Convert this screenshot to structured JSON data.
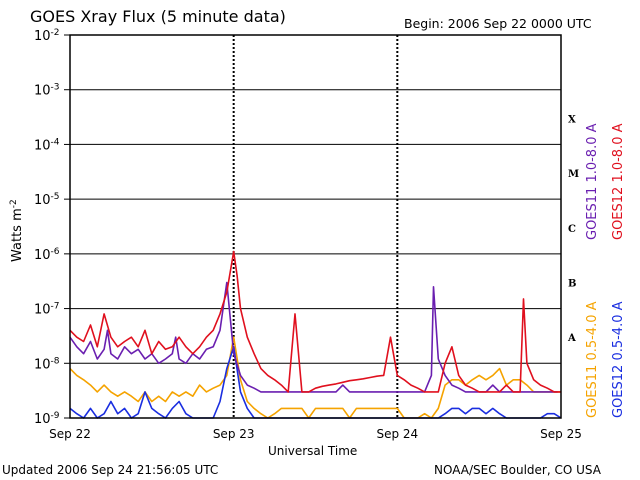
{
  "header": {
    "title": "GOES Xray Flux (5 minute data)",
    "begin": "Begin:  2006 Sep 22 0000 UTC"
  },
  "footer": {
    "updated": "Updated 2006 Sep 24 21:56:05 UTC",
    "credit": "NOAA/SEC Boulder, CO USA"
  },
  "colors": {
    "goes11_long": "#6a1fb0",
    "goes12_long": "#e0101e",
    "goes11_short": "#f5a300",
    "goes12_short": "#1a2ee0",
    "grid": "#000000"
  },
  "chart_data": {
    "type": "line",
    "yscale": "log",
    "ylim": [
      1e-09,
      0.01
    ],
    "ylabel_main": "Watts m",
    "ylabel_sup": "-2",
    "xlabel": "Universal Time",
    "y_ticks": [
      {
        "base": "10",
        "exp": "-2",
        "value": 0.01
      },
      {
        "base": "10",
        "exp": "-3",
        "value": 0.001
      },
      {
        "base": "10",
        "exp": "-4",
        "value": 0.0001
      },
      {
        "base": "10",
        "exp": "-5",
        "value": 1e-05
      },
      {
        "base": "10",
        "exp": "-6",
        "value": 1e-06
      },
      {
        "base": "10",
        "exp": "-7",
        "value": 1e-07
      },
      {
        "base": "10",
        "exp": "-8",
        "value": 1e-08
      },
      {
        "base": "10",
        "exp": "-9",
        "value": 1e-09
      }
    ],
    "x_ticks": [
      "Sep 22",
      "Sep 23",
      "Sep 24",
      "Sep 25"
    ],
    "xlim_hours": [
      0,
      72
    ],
    "flare_classes": [
      {
        "label": "X",
        "value": 0.0003
      },
      {
        "label": "M",
        "value": 3e-05
      },
      {
        "label": "C",
        "value": 3e-06
      },
      {
        "label": "B",
        "value": 3e-07
      },
      {
        "label": "A",
        "value": 3e-08
      }
    ],
    "legend_right": [
      {
        "label": "GOES11 1.0-8.0 A",
        "color_key": "goes11_long"
      },
      {
        "label": "GOES12 1.0-8.0 A",
        "color_key": "goes12_long"
      }
    ],
    "legend_left": [
      {
        "label": "GOES11 0.5-4.0 A",
        "color_key": "goes11_short"
      },
      {
        "label": "GOES12 0.5-4.0 A",
        "color_key": "goes12_short"
      }
    ],
    "series": [
      {
        "name": "GOES11 1.0-8.0 A",
        "color_key": "goes11_long",
        "x": [
          0,
          1,
          2,
          3,
          4,
          5,
          5.5,
          6,
          7,
          8,
          9,
          10,
          11,
          12,
          13,
          14,
          15,
          15.5,
          16,
          17,
          18,
          19,
          20,
          21,
          22,
          23,
          24,
          25,
          26,
          27,
          28,
          29,
          30,
          31,
          32,
          33,
          34,
          35,
          36,
          37,
          38,
          39,
          40,
          41,
          42,
          43,
          44,
          45,
          46,
          47,
          48,
          49,
          50,
          51,
          52,
          53,
          53.3,
          54,
          55,
          56,
          57,
          58,
          59,
          60,
          61,
          62,
          63,
          64,
          65,
          66,
          67,
          68,
          69,
          70,
          71,
          71.5
        ],
        "values": [
          3e-08,
          2e-08,
          1.5e-08,
          2.5e-08,
          1.2e-08,
          1.8e-08,
          4e-08,
          1.5e-08,
          1.2e-08,
          2e-08,
          1.5e-08,
          1.8e-08,
          1.2e-08,
          1.5e-08,
          1e-08,
          1.2e-08,
          1.5e-08,
          3e-08,
          1.2e-08,
          1e-08,
          1.5e-08,
          1.2e-08,
          1.8e-08,
          2e-08,
          4e-08,
          3e-07,
          1.5e-08,
          6e-09,
          4e-09,
          3.5e-09,
          3e-09,
          3e-09,
          3e-09,
          3e-09,
          3e-09,
          3e-09,
          3e-09,
          3e-09,
          3e-09,
          3e-09,
          3e-09,
          3e-09,
          4e-09,
          3e-09,
          3e-09,
          3e-09,
          3e-09,
          3e-09,
          3e-09,
          3e-09,
          3e-09,
          3e-09,
          3e-09,
          3e-09,
          3e-09,
          6e-09,
          2.5e-07,
          1.2e-08,
          6e-09,
          4e-09,
          3.5e-09,
          3e-09,
          3e-09,
          3e-09,
          3e-09,
          4e-09,
          3e-09,
          3e-09,
          3e-09,
          3e-09,
          3e-09,
          3e-09,
          3e-09,
          3e-09,
          3e-09,
          3e-09
        ]
      },
      {
        "name": "GOES12 1.0-8.0 A",
        "color_key": "goes12_long",
        "x": [
          0,
          1,
          2,
          3,
          4,
          5,
          6,
          7,
          8,
          9,
          10,
          11,
          12,
          13,
          14,
          15,
          16,
          17,
          18,
          19,
          20,
          21,
          22,
          23,
          24,
          24.5,
          25,
          26,
          27,
          28,
          29,
          30,
          31,
          32,
          33,
          34,
          35,
          36,
          37,
          38,
          39,
          40,
          41,
          42,
          43,
          44,
          45,
          46,
          47,
          48,
          49,
          50,
          51,
          52,
          53,
          54,
          55,
          56,
          57,
          58,
          59,
          60,
          61,
          62,
          63,
          64,
          65,
          66,
          66.5,
          67,
          68,
          69,
          70,
          71,
          72
        ],
        "values": [
          4e-08,
          3e-08,
          2.5e-08,
          5e-08,
          2e-08,
          8e-08,
          3e-08,
          2e-08,
          2.5e-08,
          3e-08,
          2e-08,
          4e-08,
          1.5e-08,
          2.5e-08,
          1.8e-08,
          2e-08,
          3e-08,
          2e-08,
          1.5e-08,
          2e-08,
          3e-08,
          4e-08,
          8e-08,
          2e-07,
          1.1e-06,
          4e-07,
          1e-07,
          3e-08,
          1.5e-08,
          8e-09,
          6e-09,
          5e-09,
          4e-09,
          3e-09,
          8e-08,
          3e-09,
          3e-09,
          3.5e-09,
          3.8e-09,
          4e-09,
          4.2e-09,
          4.5e-09,
          4.8e-09,
          5e-09,
          5.2e-09,
          5.5e-09,
          5.8e-09,
          6e-09,
          3e-08,
          6e-09,
          5e-09,
          4e-09,
          3.5e-09,
          3e-09,
          3e-09,
          3e-09,
          1e-08,
          2e-08,
          6e-09,
          4e-09,
          3.5e-09,
          3e-09,
          3e-09,
          3e-09,
          3e-09,
          4e-09,
          3e-09,
          3e-09,
          1.5e-07,
          1e-08,
          5e-09,
          4e-09,
          3.5e-09,
          3e-09,
          3e-09
        ]
      },
      {
        "name": "GOES11 0.5-4.0 A",
        "color_key": "goes11_short",
        "x": [
          0,
          1,
          2,
          3,
          4,
          5,
          6,
          7,
          8,
          9,
          10,
          11,
          12,
          13,
          14,
          15,
          16,
          17,
          18,
          19,
          20,
          21,
          22,
          23,
          24,
          25,
          26,
          27,
          28,
          29,
          30,
          31,
          32,
          33,
          34,
          35,
          36,
          37,
          38,
          39,
          40,
          41,
          42,
          43,
          44,
          45,
          46,
          47,
          48,
          49,
          50,
          51,
          52,
          53,
          54,
          55,
          56,
          57,
          58,
          59,
          60,
          61,
          62,
          63,
          64,
          65,
          66,
          67,
          68,
          69,
          70,
          71,
          72
        ],
        "values": [
          8e-09,
          6e-09,
          5e-09,
          4e-09,
          3e-09,
          4e-09,
          3e-09,
          2.5e-09,
          3e-09,
          2.5e-09,
          2e-09,
          3e-09,
          2e-09,
          2.5e-09,
          2e-09,
          3e-09,
          2.5e-09,
          3e-09,
          2.5e-09,
          4e-09,
          3e-09,
          3.5e-09,
          4e-09,
          6e-09,
          3e-08,
          5e-09,
          2e-09,
          1.5e-09,
          1.2e-09,
          1e-09,
          1.2e-09,
          1.5e-09,
          1.5e-09,
          1.5e-09,
          1.5e-09,
          1e-09,
          1.5e-09,
          1.5e-09,
          1.5e-09,
          1.5e-09,
          1.5e-09,
          1e-09,
          1.5e-09,
          1.5e-09,
          1.5e-09,
          1.5e-09,
          1.5e-09,
          1.5e-09,
          1.5e-09,
          1e-09,
          1e-09,
          1e-09,
          1.2e-09,
          1e-09,
          1.5e-09,
          4e-09,
          5e-09,
          5e-09,
          4e-09,
          5e-09,
          6e-09,
          5e-09,
          6e-09,
          8e-09,
          4e-09,
          5e-09,
          5e-09,
          4e-09,
          3e-09,
          3e-09,
          3e-09,
          3e-09,
          3e-09
        ]
      },
      {
        "name": "GOES12 0.5-4.0 A",
        "color_key": "goes12_short",
        "x": [
          0,
          1,
          2,
          3,
          4,
          5,
          6,
          7,
          8,
          9,
          10,
          11,
          12,
          13,
          14,
          15,
          16,
          17,
          18,
          19,
          20,
          21,
          22,
          23,
          24,
          25,
          26,
          27,
          28,
          29,
          30,
          31,
          32,
          33,
          34,
          35,
          36,
          37,
          38,
          39,
          40,
          41,
          42,
          43,
          44,
          45,
          46,
          47,
          48,
          49,
          50,
          51,
          52,
          53,
          54,
          55,
          56,
          57,
          58,
          59,
          60,
          61,
          62,
          63,
          64,
          65,
          66,
          67,
          68,
          69,
          70,
          71,
          72
        ],
        "values": [
          1.5e-09,
          1.2e-09,
          1e-09,
          1.5e-09,
          1e-09,
          1.2e-09,
          2e-09,
          1.2e-09,
          1.5e-09,
          1e-09,
          1.2e-09,
          3e-09,
          1.5e-09,
          1.2e-09,
          1e-09,
          1.5e-09,
          2e-09,
          1.2e-09,
          1e-09,
          1e-09,
          1e-09,
          1e-09,
          2e-09,
          8e-09,
          2e-08,
          3e-09,
          1.5e-09,
          1e-09,
          1e-09,
          1e-09,
          1e-09,
          1e-09,
          1e-09,
          1e-09,
          1e-09,
          1e-09,
          1e-09,
          1e-09,
          1e-09,
          1e-09,
          1e-09,
          1e-09,
          1e-09,
          1e-09,
          1e-09,
          1e-09,
          1e-09,
          1e-09,
          1e-09,
          1e-09,
          1e-09,
          1e-09,
          1e-09,
          1e-09,
          1e-09,
          1.2e-09,
          1.5e-09,
          1.5e-09,
          1.2e-09,
          1.5e-09,
          1.5e-09,
          1.2e-09,
          1.5e-09,
          1.2e-09,
          1e-09,
          1e-09,
          1e-09,
          1e-09,
          1e-09,
          1e-09,
          1.2e-09,
          1.2e-09,
          1e-09
        ]
      }
    ]
  }
}
